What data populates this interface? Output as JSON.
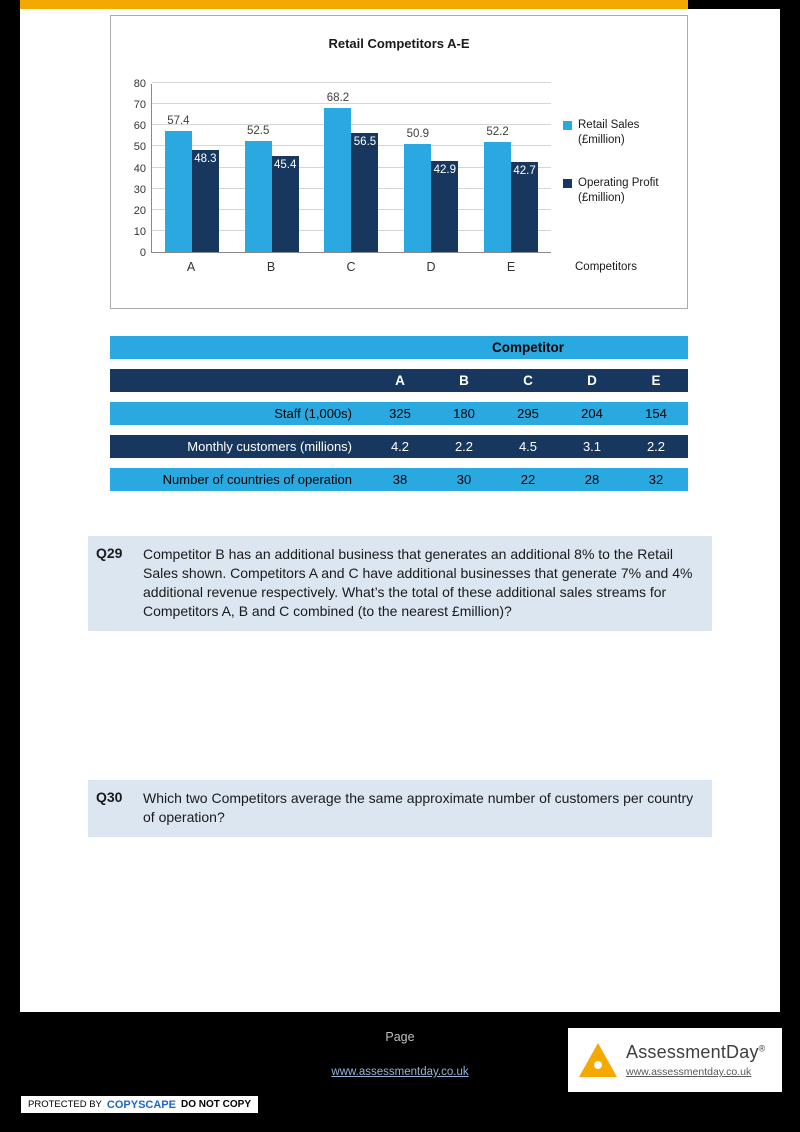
{
  "chart_data": {
    "type": "bar",
    "title": "Retail Competitors A-E",
    "categories": [
      "A",
      "B",
      "C",
      "D",
      "E"
    ],
    "series": [
      {
        "name": "Retail Sales",
        "unit": "(£million)",
        "color": "#29A9E0",
        "values": [
          57.4,
          52.5,
          68.2,
          50.9,
          52.2
        ]
      },
      {
        "name": "Operating Profit",
        "unit": "(£million)",
        "color": "#17375E",
        "values": [
          48.3,
          45.4,
          56.5,
          42.9,
          42.7
        ]
      }
    ],
    "xlabel": "Competitors",
    "ylabel": "",
    "ylim": [
      0,
      80
    ],
    "ytick_step": 10,
    "grid": true,
    "legend_position": "right",
    "value_labels": true
  },
  "table": {
    "group_header": "Competitor",
    "columns": [
      "A",
      "B",
      "C",
      "D",
      "E"
    ],
    "rows": [
      {
        "label": "Staff (1,000s)",
        "values": [
          "325",
          "180",
          "295",
          "204",
          "154"
        ]
      },
      {
        "label": "Monthly customers (millions)",
        "values": [
          "4.2",
          "2.2",
          "4.5",
          "3.1",
          "2.2"
        ]
      },
      {
        "label": "Number of countries of operation",
        "values": [
          "38",
          "30",
          "22",
          "28",
          "32"
        ]
      }
    ]
  },
  "questions": [
    {
      "id": "Q29",
      "text": "Competitor B has an additional business that generates an additional 8% to the Retail Sales shown. Competitors A and C have additional businesses that generate 7% and 4% additional revenue respectively. What’s the total of these additional sales streams for Competitors A, B and C combined (to the nearest £million)?"
    },
    {
      "id": "Q30",
      "text": "Which two Competitors average the same approximate number of customers per country of operation?"
    }
  ],
  "footer": {
    "page_label": "Page",
    "center_link": "www.assessmentday.co.uk",
    "brand_name": "AssessmentDay",
    "brand_reg": "®",
    "brand_url": "www.assessmentday.co.uk",
    "copyscape": {
      "protected_by": "PROTECTED BY",
      "brand": "COPYSCAPE",
      "warning": "DO NOT COPY"
    }
  },
  "colors": {
    "accent_blue": "#29A9E0",
    "accent_navy": "#17375E",
    "question_bg": "#DCE6F1",
    "gold_bar": "#F2A900"
  }
}
